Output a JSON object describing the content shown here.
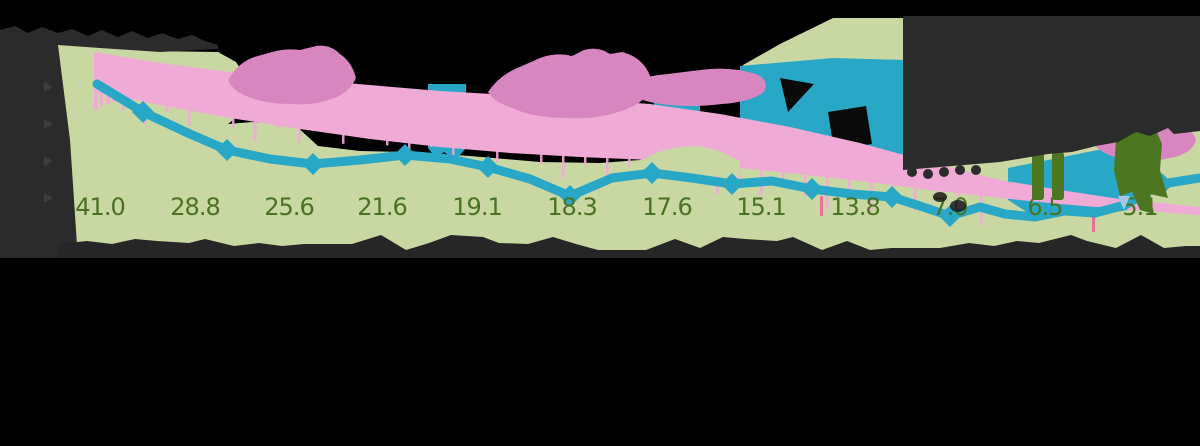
{
  "page": {
    "background_color": "#000000"
  },
  "chart_data": {
    "type": "line",
    "data_labels": [
      "41.0",
      "28.8",
      "25.6",
      "21.6",
      "19.1",
      "18.3",
      "17.6",
      "15.1",
      "13.8",
      "7.0",
      "6.5",
      "5.1"
    ],
    "label_color": "#4a7223",
    "series": [
      {
        "name": "green area",
        "color": "#c9d7a3",
        "style": "filled area declining from upper left, tall panel at right"
      },
      {
        "name": "pink line",
        "color": "#f0aad6",
        "accent_color": "#d886c0",
        "style": "thick descending band with darker segments and hanging slivers"
      },
      {
        "name": "teal line",
        "color": "#28a7c6",
        "marker": "diamond",
        "style": "descending line with diamond markers and vertical patches"
      }
    ],
    "extra_colors": {
      "dark_annotation": "#2b2b2b",
      "big_green_glyphs": "#4c761f",
      "light_blue_fleck": "#a5c6e6",
      "pink_tick": "#ee6d9d"
    },
    "axis_range_note": ""
  }
}
